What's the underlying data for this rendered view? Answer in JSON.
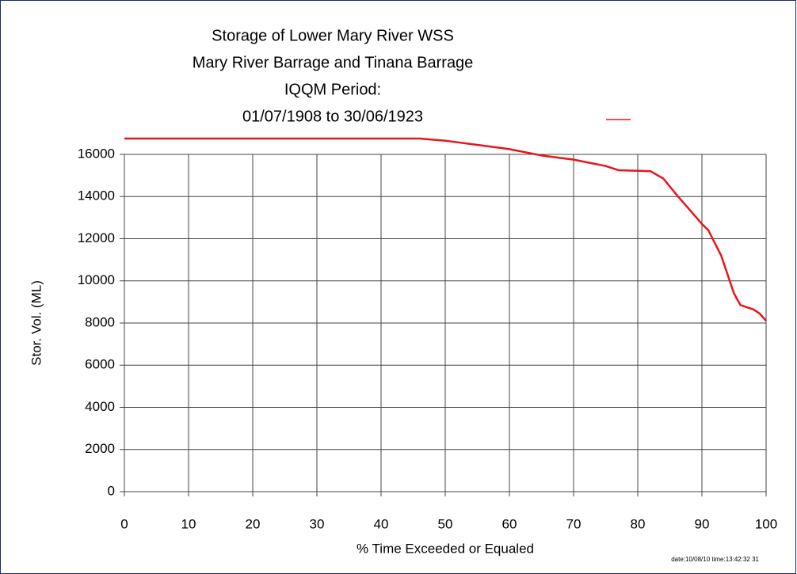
{
  "chart_data": {
    "type": "line",
    "title": [
      "Storage of Lower Mary River WSS",
      "Mary River Barrage and Tinana Barrage",
      "IQQM Period:",
      "01/07/1908 to 30/06/1923"
    ],
    "x_label": "% Time Exceeded or Equaled",
    "y_label": "Stor. Vol. (ML)",
    "stamp": "date:10/08/10 time:13:42:32 31",
    "x": [
      0,
      10,
      20,
      30,
      40,
      46,
      50,
      55,
      60,
      65,
      70,
      75,
      77,
      80,
      82,
      84,
      86,
      88,
      90,
      91,
      92,
      93,
      94,
      95,
      96,
      97,
      98,
      99,
      100
    ],
    "series": [
      {
        "color": "#e8141b",
        "values": [
          16750,
          16750,
          16750,
          16750,
          16750,
          16750,
          16650,
          16450,
          16250,
          15950,
          15750,
          15450,
          15250,
          15220,
          15200,
          14850,
          14100,
          13400,
          12700,
          12400,
          11800,
          11200,
          10300,
          9400,
          8850,
          8750,
          8650,
          8450,
          8100
        ]
      }
    ],
    "xlim": [
      0,
      100
    ],
    "xticks": [
      0,
      10,
      20,
      30,
      40,
      50,
      60,
      70,
      80,
      90,
      100
    ],
    "ylim": [
      0,
      16000
    ],
    "yticks": [
      0,
      2000,
      4000,
      6000,
      8000,
      10000,
      12000,
      14000,
      16000
    ],
    "grid": true
  }
}
